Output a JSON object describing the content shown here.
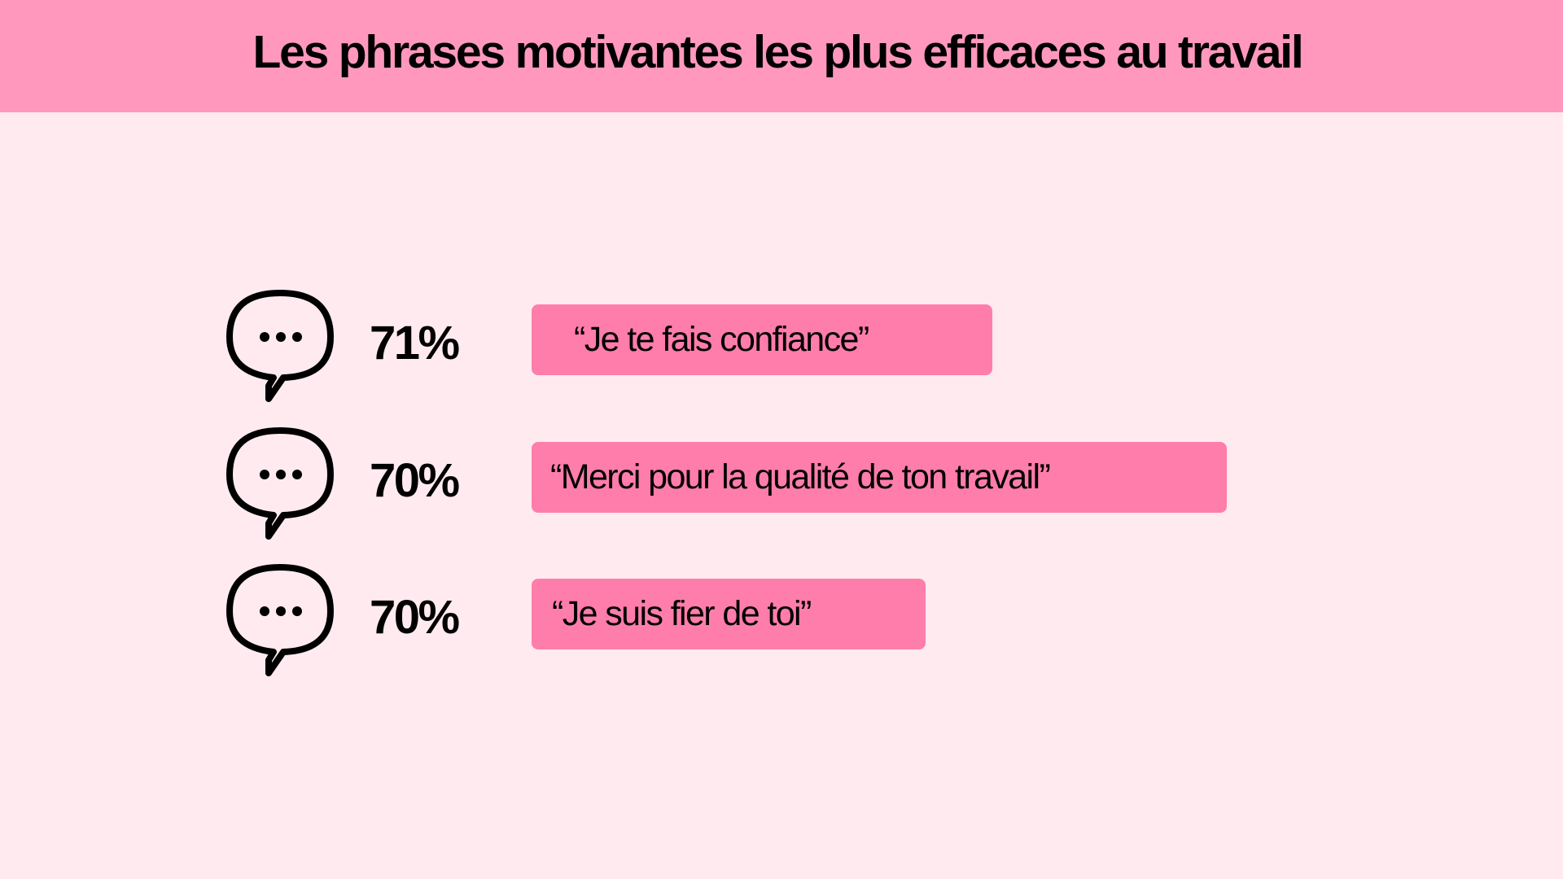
{
  "title": "Les phrases motivantes les plus efficaces au travail",
  "colors": {
    "header_background": "#FF98BC",
    "page_background": "#FFEAF0",
    "phrase_bar": "#FF7DAA",
    "text": "#000000"
  },
  "rows": [
    {
      "icon": "speech-bubble-icon",
      "percent": "71%",
      "phrase": "“Je te fais confiance”"
    },
    {
      "icon": "speech-bubble-icon",
      "percent": "70%",
      "phrase": "“Merci pour la qualité de ton travail”"
    },
    {
      "icon": "speech-bubble-icon",
      "percent": "70%",
      "phrase": "“Je suis fier de toi”"
    }
  ]
}
